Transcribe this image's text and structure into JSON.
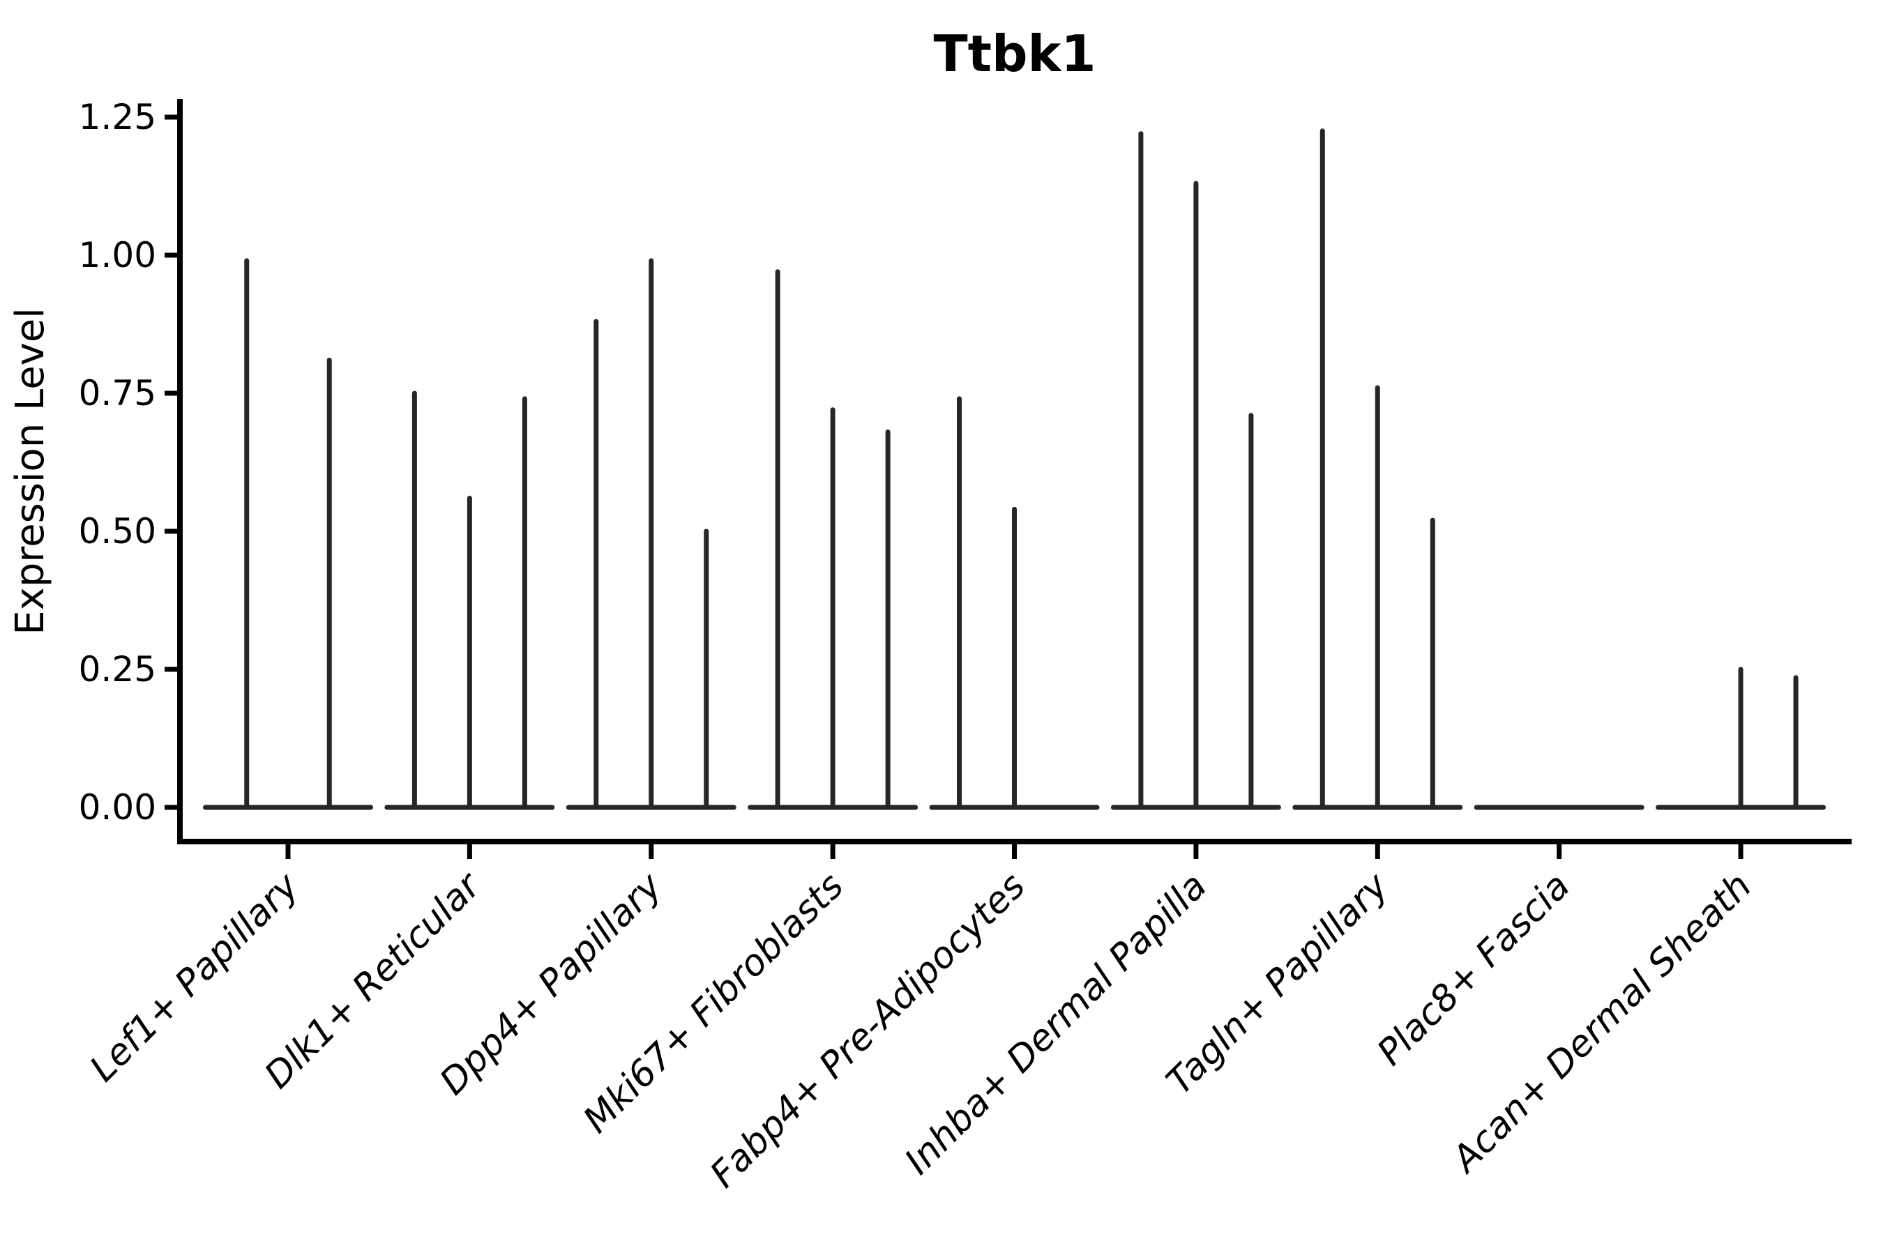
{
  "title": "Ttbk1",
  "ylabel": "Expression Level",
  "xlabel": "",
  "colors": {
    "violin": "#262626",
    "axis": "#000000",
    "text": "#000000",
    "background": "#ffffff"
  },
  "chart_data": {
    "type": "violin",
    "title": "Ttbk1",
    "xlabel": "",
    "ylabel": "Expression Level",
    "grid": false,
    "legend": "none",
    "ylim": [
      -0.07,
      1.28
    ],
    "yticks": [
      0.0,
      0.25,
      0.5,
      0.75,
      1.0,
      1.25
    ],
    "ytick_labels": [
      "0.00",
      "0.25",
      "0.50",
      "0.75",
      "1.00",
      "1.25"
    ],
    "categories": [
      "Lef1+ Papillary",
      "Dlk1+ Reticular",
      "Dpp4+ Papillary",
      "Mki67+ Fibroblasts",
      "Fabp4+ Pre-Adipocytes",
      "Inhba+ Dermal Papilla",
      "Tagln+ Papillary",
      "Plac8+ Fascia",
      "Acan+ Dermal Sheath"
    ],
    "violins": [
      {
        "category": "Lef1+ Papillary",
        "spike_max_values": [
          0.99,
          0.81
        ]
      },
      {
        "category": "Dlk1+ Reticular",
        "spike_max_values": [
          0.75,
          0.56,
          0.74
        ]
      },
      {
        "category": "Dpp4+ Papillary",
        "spike_max_values": [
          0.88,
          0.99,
          0.5
        ]
      },
      {
        "category": "Mki67+ Fibroblasts",
        "spike_max_values": [
          0.97,
          0.72,
          0.68
        ]
      },
      {
        "category": "Fabp4+ Pre-Adipocytes",
        "spike_max_values": [
          0.74,
          0.54,
          0
        ]
      },
      {
        "category": "Inhba+ Dermal Papilla",
        "spike_max_values": [
          1.22,
          1.13,
          0.71
        ]
      },
      {
        "category": "Tagln+ Papillary",
        "spike_max_values": [
          1.225,
          0.76,
          0.52
        ]
      },
      {
        "category": "Plac8+ Fascia",
        "spike_max_values": [
          0,
          0,
          0
        ]
      },
      {
        "category": "Acan+ Dermal Sheath",
        "spike_max_values": [
          0,
          0.25,
          0.235
        ]
      }
    ],
    "description": "Sparse single-cell violins: each category shows a flat density line at expression 0 with thin vertical spikes reaching the listed maximum expression per violin; 0 means a completely flat violin."
  }
}
